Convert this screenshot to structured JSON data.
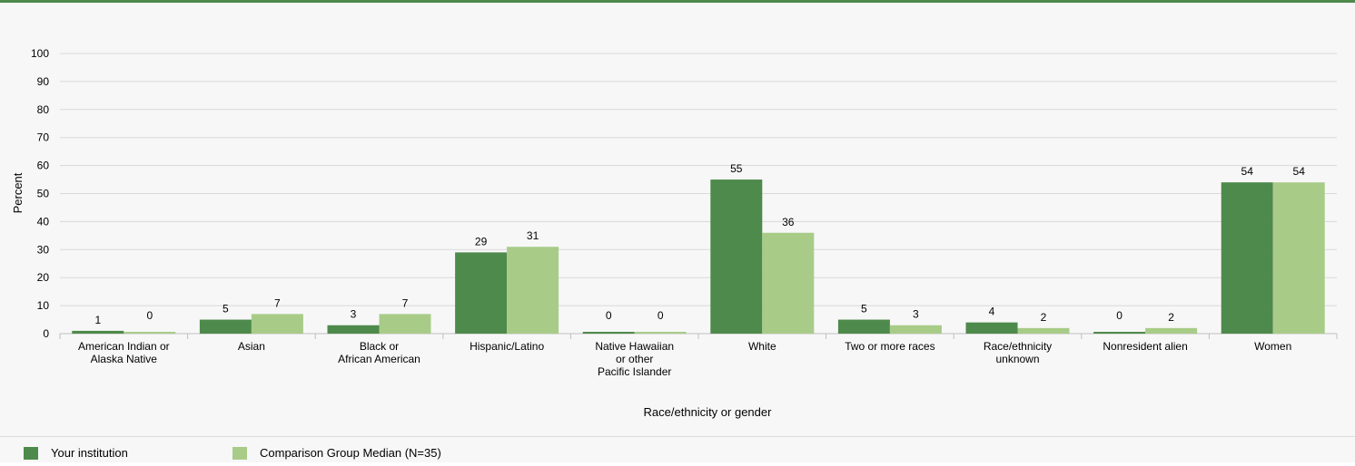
{
  "chart_data": {
    "type": "bar",
    "xlabel": "Race/ethnicity or gender",
    "ylabel": "Percent",
    "ylim": [
      0,
      100
    ],
    "yticks": [
      "0",
      "10",
      "20",
      "30",
      "40",
      "50",
      "60",
      "70",
      "80",
      "90",
      "100"
    ],
    "grid": true,
    "legend_position": "bottom",
    "categories": [
      [
        "American Indian or",
        "Alaska Native"
      ],
      [
        "Asian"
      ],
      [
        "Black or",
        "African American"
      ],
      [
        "Hispanic/Latino"
      ],
      [
        "Native Hawaiian",
        "or other",
        "Pacific Islander"
      ],
      [
        "White"
      ],
      [
        "Two or more races"
      ],
      [
        "Race/ethnicity",
        "unknown"
      ],
      [
        "Nonresident alien"
      ],
      [
        "Women"
      ]
    ],
    "series": [
      {
        "name": "Your institution",
        "color": "#4e8a4b",
        "values": [
          1,
          5,
          3,
          29,
          0,
          55,
          5,
          4,
          0,
          54
        ],
        "labels": [
          "1",
          "5",
          "3",
          "29",
          "0",
          "55",
          "5",
          "4",
          "0",
          "54"
        ]
      },
      {
        "name": "Comparison Group Median (N=35)",
        "color": "#a8cc88",
        "values": [
          0,
          7,
          7,
          31,
          0,
          36,
          3,
          2,
          2,
          54
        ],
        "labels": [
          "0",
          "7",
          "7",
          "31",
          "0",
          "36",
          "3",
          "2",
          "2",
          "54"
        ]
      }
    ]
  }
}
